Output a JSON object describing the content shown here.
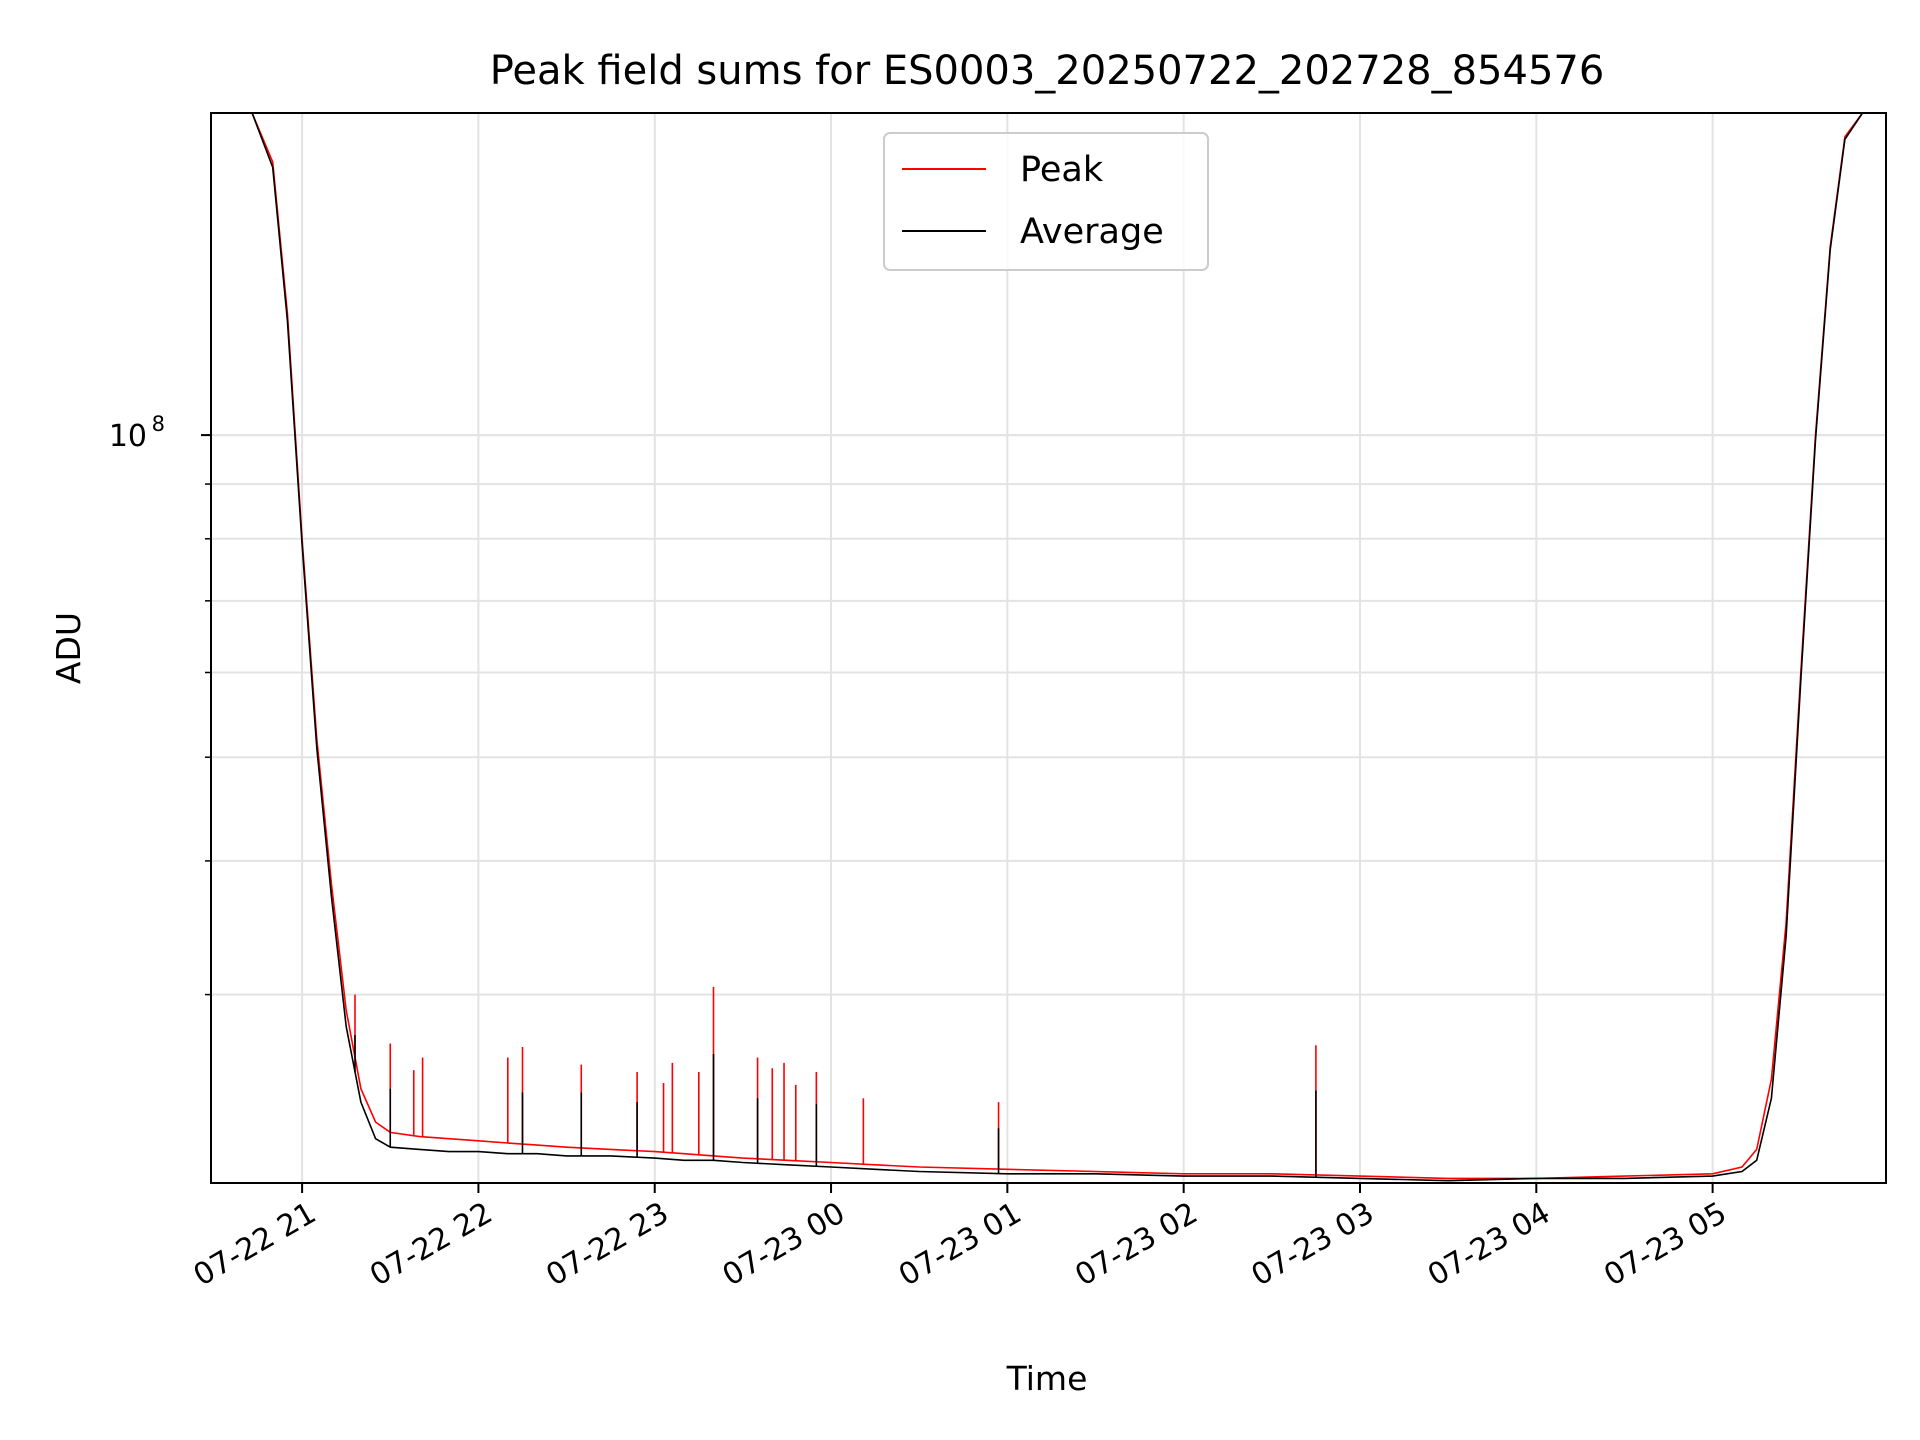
{
  "chart_data": {
    "type": "line",
    "title": "Peak field sums for ES0003_20250722_202728_854576",
    "xlabel": "Time",
    "ylabel": "ADU",
    "y_scale": "log",
    "ylim": [
      20000000,
      200000000
    ],
    "xlim": [
      "2025-07-22 20:29",
      "2025-07-23 05:59"
    ],
    "x_ticks": [
      {
        "value": "2025-07-22 21:00",
        "label": "07-22 21"
      },
      {
        "value": "2025-07-22 22:00",
        "label": "07-22 22"
      },
      {
        "value": "2025-07-22 23:00",
        "label": "07-22 23"
      },
      {
        "value": "2025-07-23 00:00",
        "label": "07-23 00"
      },
      {
        "value": "2025-07-23 01:00",
        "label": "07-23 01"
      },
      {
        "value": "2025-07-23 02:00",
        "label": "07-23 02"
      },
      {
        "value": "2025-07-23 03:00",
        "label": "07-23 03"
      },
      {
        "value": "2025-07-23 04:00",
        "label": "07-23 04"
      },
      {
        "value": "2025-07-23 05:00",
        "label": "07-23 05"
      }
    ],
    "y_ticks": [
      {
        "value": 100000000,
        "label": "10",
        "exponent": "8"
      }
    ],
    "grid": true,
    "legend": "top-center",
    "series": [
      {
        "name": "Peak",
        "color": "#ff0000",
        "x": [
          "2025-07-22 20:43",
          "2025-07-22 20:50",
          "2025-07-22 20:55",
          "2025-07-22 21:00",
          "2025-07-22 21:05",
          "2025-07-22 21:10",
          "2025-07-22 21:15",
          "2025-07-22 21:20",
          "2025-07-22 21:25",
          "2025-07-22 21:30",
          "2025-07-22 21:40",
          "2025-07-22 21:50",
          "2025-07-22 22:00",
          "2025-07-22 22:10",
          "2025-07-22 22:20",
          "2025-07-22 22:30",
          "2025-07-22 22:45",
          "2025-07-22 23:00",
          "2025-07-22 23:10",
          "2025-07-22 23:20",
          "2025-07-22 23:30",
          "2025-07-22 23:45",
          "2025-07-23 00:00",
          "2025-07-23 00:15",
          "2025-07-23 00:30",
          "2025-07-23 01:00",
          "2025-07-23 01:30",
          "2025-07-23 02:00",
          "2025-07-23 02:30",
          "2025-07-23 03:00",
          "2025-07-23 03:30",
          "2025-07-23 04:00",
          "2025-07-23 04:30",
          "2025-07-23 05:00",
          "2025-07-23 05:10",
          "2025-07-23 05:15",
          "2025-07-23 05:20",
          "2025-07-23 05:25",
          "2025-07-23 05:30",
          "2025-07-23 05:35",
          "2025-07-23 05:40",
          "2025-07-23 05:45",
          "2025-07-23 05:51"
        ],
        "y": [
          200000000,
          180000000,
          130000000,
          80000000,
          52000000,
          38000000,
          29000000,
          24500000,
          22800000,
          22300000,
          22100000,
          22000000,
          21900000,
          21800000,
          21700000,
          21600000,
          21500000,
          21400000,
          21300000,
          21200000,
          21100000,
          21000000,
          20900000,
          20800000,
          20700000,
          20600000,
          20500000,
          20400000,
          20400000,
          20300000,
          20200000,
          20200000,
          20300000,
          20400000,
          20700000,
          21500000,
          25000000,
          35000000,
          60000000,
          100000000,
          150000000,
          190000000,
          200000000
        ],
        "spikes": [
          {
            "x": "2025-07-22 21:18",
            "y": 30000000
          },
          {
            "x": "2025-07-22 21:30",
            "y": 27000000
          },
          {
            "x": "2025-07-22 21:38",
            "y": 25500000
          },
          {
            "x": "2025-07-22 21:41",
            "y": 26200000
          },
          {
            "x": "2025-07-22 22:10",
            "y": 26200000
          },
          {
            "x": "2025-07-22 22:15",
            "y": 26800000
          },
          {
            "x": "2025-07-22 22:35",
            "y": 25800000
          },
          {
            "x": "2025-07-22 22:54",
            "y": 25400000
          },
          {
            "x": "2025-07-22 23:03",
            "y": 24800000
          },
          {
            "x": "2025-07-22 23:06",
            "y": 25900000
          },
          {
            "x": "2025-07-22 23:15",
            "y": 25400000
          },
          {
            "x": "2025-07-22 23:20",
            "y": 30500000
          },
          {
            "x": "2025-07-22 23:35",
            "y": 26200000
          },
          {
            "x": "2025-07-22 23:40",
            "y": 25600000
          },
          {
            "x": "2025-07-22 23:44",
            "y": 25900000
          },
          {
            "x": "2025-07-22 23:48",
            "y": 24700000
          },
          {
            "x": "2025-07-22 23:55",
            "y": 25400000
          },
          {
            "x": "2025-07-23 00:11",
            "y": 24000000
          },
          {
            "x": "2025-07-23 00:57",
            "y": 23800000
          },
          {
            "x": "2025-07-23 02:45",
            "y": 26900000
          }
        ]
      },
      {
        "name": "Average",
        "color": "#000000",
        "x": [
          "2025-07-22 20:43",
          "2025-07-22 20:50",
          "2025-07-22 20:55",
          "2025-07-22 21:00",
          "2025-07-22 21:05",
          "2025-07-22 21:10",
          "2025-07-22 21:15",
          "2025-07-22 21:20",
          "2025-07-22 21:25",
          "2025-07-22 21:30",
          "2025-07-22 21:40",
          "2025-07-22 21:50",
          "2025-07-22 22:00",
          "2025-07-22 22:10",
          "2025-07-22 22:20",
          "2025-07-22 22:30",
          "2025-07-22 22:45",
          "2025-07-22 23:00",
          "2025-07-22 23:10",
          "2025-07-22 23:20",
          "2025-07-22 23:30",
          "2025-07-22 23:45",
          "2025-07-23 00:00",
          "2025-07-23 00:15",
          "2025-07-23 00:30",
          "2025-07-23 01:00",
          "2025-07-23 01:30",
          "2025-07-23 02:00",
          "2025-07-23 02:30",
          "2025-07-23 03:00",
          "2025-07-23 03:30",
          "2025-07-23 04:00",
          "2025-07-23 04:30",
          "2025-07-23 05:00",
          "2025-07-23 05:10",
          "2025-07-23 05:15",
          "2025-07-23 05:20",
          "2025-07-23 05:25",
          "2025-07-23 05:30",
          "2025-07-23 05:35",
          "2025-07-23 05:40",
          "2025-07-23 05:45",
          "2025-07-23 05:51"
        ],
        "y": [
          200000000,
          178000000,
          128000000,
          79000000,
          51000000,
          37000000,
          28000000,
          23800000,
          22000000,
          21600000,
          21500000,
          21400000,
          21400000,
          21300000,
          21300000,
          21200000,
          21200000,
          21100000,
          21000000,
          21000000,
          20900000,
          20800000,
          20700000,
          20600000,
          20500000,
          20400000,
          20400000,
          20300000,
          20300000,
          20200000,
          20100000,
          20200000,
          20200000,
          20300000,
          20500000,
          21000000,
          24000000,
          34000000,
          59000000,
          99000000,
          149000000,
          189000000,
          200000000
        ],
        "spikes": [
          {
            "x": "2025-07-22 21:18",
            "y": 27500000
          },
          {
            "x": "2025-07-22 21:30",
            "y": 24500000
          },
          {
            "x": "2025-07-22 22:15",
            "y": 24300000
          },
          {
            "x": "2025-07-22 22:35",
            "y": 24300000
          },
          {
            "x": "2025-07-22 22:54",
            "y": 23800000
          },
          {
            "x": "2025-07-22 23:20",
            "y": 26400000
          },
          {
            "x": "2025-07-22 23:35",
            "y": 24000000
          },
          {
            "x": "2025-07-22 23:55",
            "y": 23700000
          },
          {
            "x": "2025-07-23 00:57",
            "y": 22500000
          },
          {
            "x": "2025-07-23 02:45",
            "y": 24400000
          }
        ]
      }
    ]
  }
}
